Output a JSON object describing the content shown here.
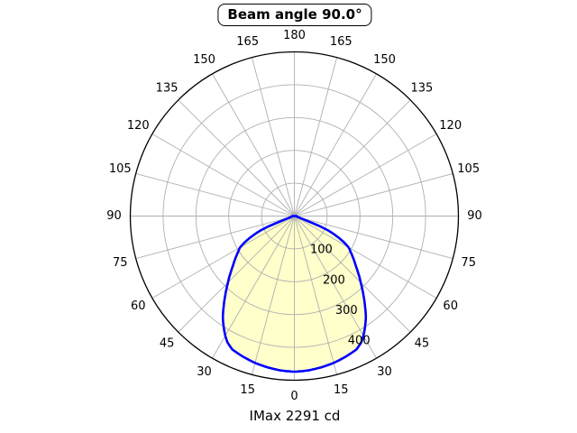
{
  "title": "Beam angle 90.0°",
  "footer": "IMax 2291 cd",
  "colors": {
    "curve": "#0000ff",
    "fill": "#ffffcc",
    "grid": "#b0b0b0",
    "axis_ring": "#000000",
    "text": "#000000",
    "background": "#ffffff"
  },
  "chart_data": {
    "type": "line",
    "subtype": "polar-photometric",
    "title": "Beam angle 90.0°",
    "annotation": "IMax 2291 cd",
    "beam_angle_deg": 90.0,
    "imax_cd": 2291,
    "zero_angle_direction": "down",
    "angular_tick_step_deg": 15,
    "angular_tick_labels": [
      0,
      15,
      30,
      45,
      60,
      75,
      90,
      105,
      120,
      135,
      150,
      165,
      180
    ],
    "angular_labels_mirrored_both_sides": true,
    "radial_tick_labels": [
      100,
      200,
      300,
      400
    ],
    "radial_label_angle_deg": 22.5,
    "r_min": 0,
    "r_max": 500,
    "grid": true,
    "series": [
      {
        "name": "luminous-intensity-distribution",
        "symmetric_about_0deg": true,
        "points_angle_deg_vs_value": [
          [
            0,
            474
          ],
          [
            5,
            472
          ],
          [
            10,
            468
          ],
          [
            15,
            463
          ],
          [
            20,
            456
          ],
          [
            25,
            448
          ],
          [
            28,
            435
          ],
          [
            30,
            421
          ],
          [
            32,
            405
          ],
          [
            35,
            380
          ],
          [
            38,
            350
          ],
          [
            41,
            321
          ],
          [
            45,
            286
          ],
          [
            48,
            263
          ],
          [
            51,
            241
          ],
          [
            54,
            223
          ],
          [
            57,
            206
          ],
          [
            60,
            191
          ],
          [
            62,
            173
          ],
          [
            64,
            150
          ],
          [
            66,
            125
          ],
          [
            67,
            110
          ],
          [
            68,
            89
          ],
          [
            69,
            61
          ],
          [
            70,
            35
          ],
          [
            71,
            22
          ],
          [
            72,
            16
          ],
          [
            74,
            11
          ],
          [
            78,
            8
          ],
          [
            84,
            7
          ],
          [
            90,
            6
          ]
        ]
      }
    ]
  }
}
